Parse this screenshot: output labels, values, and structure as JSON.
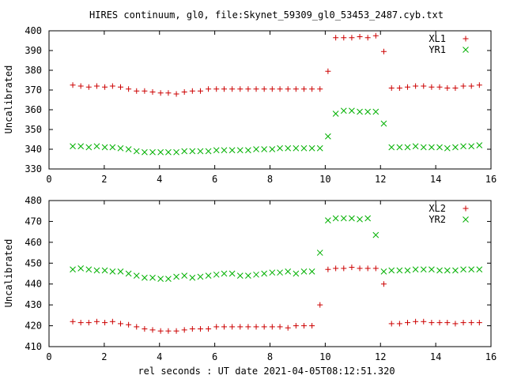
{
  "title": "HIRES continuum, gl0, file:Skynet_59309_gl0_53453_2487.cyb.txt",
  "xlabel": "rel seconds : UT date 2021-04-05T08:12:51.320",
  "colors": {
    "red_series": "#cc0000",
    "green_series": "#00b000",
    "axis": "#000000"
  },
  "chart_data": [
    {
      "type": "scatter",
      "xlim": [
        0,
        16
      ],
      "ylim": [
        330,
        400
      ],
      "xticks": [
        0,
        2,
        4,
        6,
        8,
        10,
        12,
        14,
        16
      ],
      "yticks": [
        330,
        340,
        350,
        360,
        370,
        380,
        390,
        400
      ],
      "ylabel": "Uncalibrated",
      "legend_position": "top-right",
      "grid": false,
      "series": [
        {
          "name": "XL1",
          "marker": "plus",
          "color": "#cc0000",
          "x": [
            0.86,
            1.15,
            1.44,
            1.73,
            2.02,
            2.3,
            2.59,
            2.88,
            3.17,
            3.46,
            3.75,
            4.04,
            4.32,
            4.61,
            4.9,
            5.19,
            5.48,
            5.77,
            6.06,
            6.34,
            6.63,
            6.92,
            7.21,
            7.5,
            7.79,
            8.08,
            8.36,
            8.65,
            8.94,
            9.23,
            9.52,
            9.81,
            10.1,
            10.38,
            10.67,
            10.96,
            11.25,
            11.54,
            11.83,
            12.12,
            12.4,
            12.69,
            12.98,
            13.27,
            13.56,
            13.85,
            14.14,
            14.42,
            14.71,
            15.0,
            15.29,
            15.58
          ],
          "y": [
            372.5,
            372.0,
            371.5,
            372.0,
            371.5,
            372.0,
            371.5,
            370.5,
            369.5,
            369.5,
            369.0,
            368.5,
            368.5,
            368.0,
            369.0,
            369.5,
            369.5,
            370.5,
            370.5,
            370.5,
            370.5,
            370.5,
            370.5,
            370.5,
            370.5,
            370.5,
            370.5,
            370.5,
            370.5,
            370.5,
            370.5,
            370.5,
            379.5,
            396.5,
            396.5,
            396.5,
            397.0,
            396.5,
            397.5,
            389.5,
            371.0,
            371.0,
            371.5,
            372.0,
            372.0,
            371.5,
            371.5,
            371.0,
            371.0,
            372.0,
            372.0,
            372.5
          ]
        },
        {
          "name": "YR1",
          "marker": "cross",
          "color": "#00b000",
          "x": [
            0.86,
            1.15,
            1.44,
            1.73,
            2.02,
            2.3,
            2.59,
            2.88,
            3.17,
            3.46,
            3.75,
            4.04,
            4.32,
            4.61,
            4.9,
            5.19,
            5.48,
            5.77,
            6.06,
            6.34,
            6.63,
            6.92,
            7.21,
            7.5,
            7.79,
            8.08,
            8.36,
            8.65,
            8.94,
            9.23,
            9.52,
            9.81,
            10.1,
            10.38,
            10.67,
            10.96,
            11.25,
            11.54,
            11.83,
            12.12,
            12.4,
            12.69,
            12.98,
            13.27,
            13.56,
            13.85,
            14.14,
            14.42,
            14.71,
            15.0,
            15.29,
            15.58
          ],
          "y": [
            341.5,
            341.5,
            341.0,
            341.5,
            341.0,
            341.0,
            340.5,
            340.0,
            339.0,
            338.5,
            338.5,
            338.5,
            338.5,
            338.5,
            339.0,
            339.0,
            339.0,
            339.0,
            339.5,
            339.5,
            339.5,
            339.5,
            339.5,
            340.0,
            340.0,
            340.0,
            340.5,
            340.5,
            340.5,
            340.5,
            340.5,
            340.5,
            346.5,
            358.0,
            359.5,
            359.5,
            359.0,
            359.0,
            359.0,
            353.0,
            341.0,
            341.0,
            341.0,
            341.5,
            341.0,
            341.0,
            341.0,
            340.5,
            341.0,
            341.5,
            341.5,
            342.0
          ]
        }
      ]
    },
    {
      "type": "scatter",
      "xlim": [
        0,
        16
      ],
      "ylim": [
        410,
        480
      ],
      "xticks": [
        0,
        2,
        4,
        6,
        8,
        10,
        12,
        14,
        16
      ],
      "yticks": [
        410,
        420,
        430,
        440,
        450,
        460,
        470,
        480
      ],
      "ylabel": "Uncalibrated",
      "legend_position": "top-right",
      "grid": false,
      "series": [
        {
          "name": "XL2",
          "marker": "plus",
          "color": "#cc0000",
          "x": [
            0.86,
            1.15,
            1.44,
            1.73,
            2.02,
            2.3,
            2.59,
            2.88,
            3.17,
            3.46,
            3.75,
            4.04,
            4.32,
            4.61,
            4.9,
            5.19,
            5.48,
            5.77,
            6.06,
            6.34,
            6.63,
            6.92,
            7.21,
            7.5,
            7.79,
            8.08,
            8.36,
            8.65,
            8.94,
            9.23,
            9.52,
            9.81,
            10.1,
            10.38,
            10.67,
            10.96,
            11.25,
            11.54,
            11.83,
            12.12,
            12.4,
            12.69,
            12.98,
            13.27,
            13.56,
            13.85,
            14.14,
            14.42,
            14.71,
            15.0,
            15.29,
            15.58
          ],
          "y": [
            422.0,
            421.5,
            421.5,
            422.0,
            421.5,
            422.0,
            421.0,
            420.5,
            419.5,
            418.5,
            418.0,
            417.5,
            417.5,
            417.5,
            418.0,
            418.5,
            418.5,
            418.5,
            419.5,
            419.5,
            419.5,
            419.5,
            419.5,
            419.5,
            419.5,
            419.5,
            419.5,
            419.0,
            420.0,
            420.0,
            420.0,
            430.0,
            447.0,
            447.5,
            447.5,
            448.0,
            447.5,
            447.5,
            447.5,
            440.0,
            421.0,
            421.0,
            421.5,
            422.0,
            422.0,
            421.5,
            421.5,
            421.5,
            421.0,
            421.5,
            421.5,
            421.5
          ],
          "_note_removed": ""
        },
        {
          "name": "YR2",
          "marker": "cross",
          "color": "#00b000",
          "x": [
            0.86,
            1.15,
            1.44,
            1.73,
            2.02,
            2.3,
            2.59,
            2.88,
            3.17,
            3.46,
            3.75,
            4.04,
            4.32,
            4.61,
            4.9,
            5.19,
            5.48,
            5.77,
            6.06,
            6.34,
            6.63,
            6.92,
            7.21,
            7.5,
            7.79,
            8.08,
            8.36,
            8.65,
            8.94,
            9.23,
            9.52,
            9.81,
            10.1,
            10.38,
            10.67,
            10.96,
            11.25,
            11.54,
            11.83,
            12.12,
            12.4,
            12.69,
            12.98,
            13.27,
            13.56,
            13.85,
            14.14,
            14.42,
            14.71,
            15.0,
            15.29,
            15.58
          ],
          "y": [
            447.0,
            447.5,
            447.0,
            446.5,
            446.5,
            446.0,
            446.0,
            445.0,
            444.0,
            443.0,
            443.0,
            442.5,
            442.5,
            443.5,
            444.0,
            443.0,
            443.5,
            444.0,
            444.5,
            445.0,
            445.0,
            444.0,
            444.0,
            444.5,
            445.0,
            445.5,
            445.5,
            446.0,
            445.0,
            446.0,
            446.0,
            455.0,
            470.5,
            471.5,
            471.5,
            471.5,
            471.0,
            471.5,
            463.5,
            446.0,
            446.5,
            446.5,
            446.5,
            447.0,
            447.0,
            447.0,
            446.5,
            446.5,
            446.5,
            447.0,
            447.0,
            447.0
          ]
        }
      ]
    }
  ]
}
